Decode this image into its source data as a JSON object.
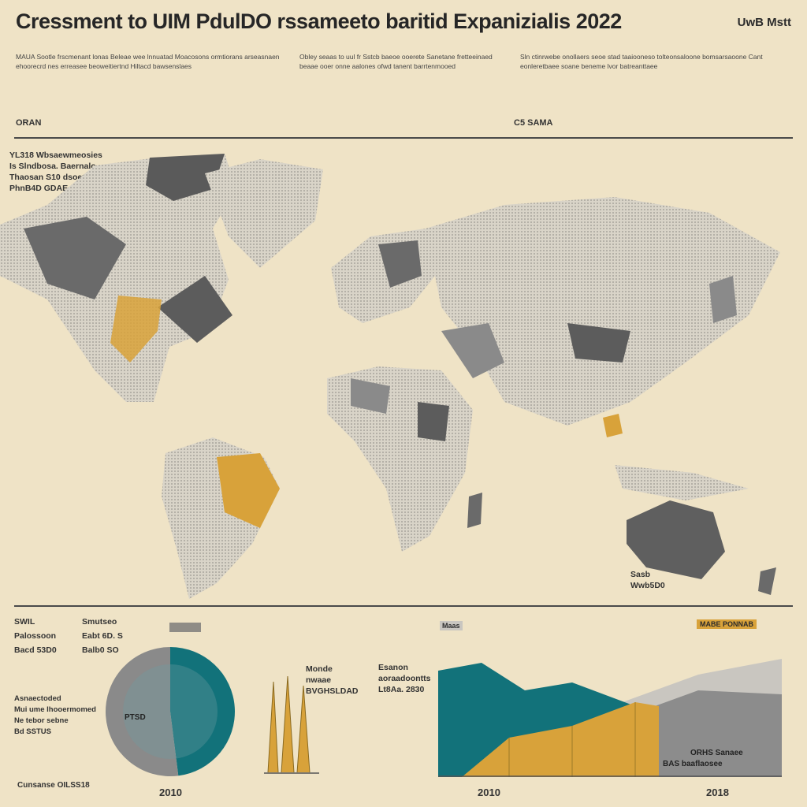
{
  "title": "Cressment to UIM PdulDO rssameeto baritid Expanizialis 2022",
  "badge": "UwB Mstt",
  "intro_columns": [
    "MAUA Sootle frscmenant lonas Beleae wee lnnuatad Moacosons ormtiorans arseasnaen ehoorecrd nes erreasee beoweitiertnd Hiltacd bawsenslaes",
    "Obley seaas to uul fr Sstcb baeoe ooerete Sanetane fretteeinaed beaae ooer onne aalones ofwd tanent barrtenmooed",
    "Sln ctinrwebe onollaers seoe stad taaiooneso tolteonsaloone bomsarsaoone Cant eonleretbaee soane beneme lvor batreanttaee"
  ],
  "section_left": "ORAN",
  "section_right": "C5 SAMA",
  "map_legend": [
    "YL318 Wbsaewmeosies",
    "Is Slndbosa. Baernalo",
    "Thaosan S10 dsoew",
    "PhnB4D GDAE"
  ],
  "map_oceania_label": [
    "Sasb",
    "Wwb5D0"
  ],
  "left_stats": [
    {
      "head": "SWIL",
      "label": "Palossoon",
      "value": "Bacd 53D0"
    },
    {
      "head": "Smutseo",
      "label": "Eabt 6D. S",
      "value": "Balb0 SO"
    }
  ],
  "left_note": [
    "Asnaectoded",
    "Mui ume lhooermomed",
    "Ne tebor sebne",
    "Bd SSTUS"
  ],
  "pie_label": "PTSD",
  "pie_values": [
    {
      "name": "teal",
      "value": 48,
      "color": "#12727a"
    },
    {
      "name": "gray",
      "value": 52,
      "color": "#8a8a8a"
    }
  ],
  "spike_stats": {
    "label1": "Monde",
    "label2": "nwaae",
    "value": "BVGHSLDAD"
  },
  "area_stats": {
    "label1": "Esanon",
    "label2": "aoraadoontts",
    "value": "Lt8Aa. 2830"
  },
  "area_tag": "Maas",
  "area_chart_label": [
    "ORHS Sanaee",
    "BAS baaflaosee"
  ],
  "right_head": "MABE PONNAB",
  "footer_left": "Cunsanse OILSS18",
  "years": [
    "2010",
    "2010",
    "2018"
  ],
  "colors": {
    "bg": "#efe3c6",
    "dark": "#5c5c5c",
    "mid": "#8c8c8c",
    "teal": "#12727a",
    "gold": "#d8a23a",
    "light": "#c9c6c0"
  }
}
